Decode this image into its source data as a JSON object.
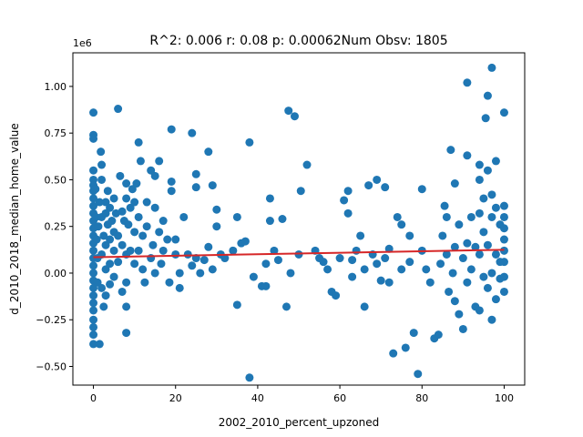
{
  "chart_data": {
    "type": "scatter",
    "title": "R^2: 0.006 r: 0.08 p: 0.00062Num Obsv: 1805",
    "xlabel": "2002_2010_percent_upzoned",
    "ylabel": "d_2010_2018_median_home_value",
    "y_offset_label": "1e6",
    "xlim": [
      -5,
      105
    ],
    "ylim": [
      -0.6,
      1.18
    ],
    "xticks": [
      0,
      20,
      40,
      60,
      80,
      100
    ],
    "yticks": [
      -0.5,
      -0.25,
      0.0,
      0.25,
      0.5,
      0.75,
      1.0
    ],
    "xtick_labels": [
      "0",
      "20",
      "40",
      "60",
      "80",
      "100"
    ],
    "ytick_labels": [
      "−0.50",
      "−0.25",
      "0.00",
      "0.25",
      "0.50",
      "0.75",
      "1.00"
    ],
    "grid": false,
    "point_color": "#1f77b4",
    "fit_line_color": "#d62728",
    "fit_line": {
      "x": [
        0,
        100
      ],
      "y": [
        0.085,
        0.125
      ]
    },
    "series": [
      {
        "points": [
          [
            0,
            0.86
          ],
          [
            0,
            0.74
          ],
          [
            0,
            0.72
          ],
          [
            0,
            0.55
          ],
          [
            0,
            0.5
          ],
          [
            0,
            0.47
          ],
          [
            0,
            0.44
          ],
          [
            0,
            0.4
          ],
          [
            0,
            0.36
          ],
          [
            0,
            0.32
          ],
          [
            0,
            0.28
          ],
          [
            0,
            0.24
          ],
          [
            0,
            0.2
          ],
          [
            0,
            0.16
          ],
          [
            0,
            0.12
          ],
          [
            0,
            0.08
          ],
          [
            0,
            0.04
          ],
          [
            0,
            0.0
          ],
          [
            0,
            -0.04
          ],
          [
            0,
            -0.08
          ],
          [
            0,
            -0.12
          ],
          [
            0,
            -0.16
          ],
          [
            0,
            -0.2
          ],
          [
            0,
            -0.25
          ],
          [
            0,
            -0.29
          ],
          [
            0,
            -0.33
          ],
          [
            0,
            -0.38
          ],
          [
            0.5,
            0.45
          ],
          [
            0.6,
            0.3
          ],
          [
            0.8,
            0.18
          ],
          [
            1,
            0.08
          ],
          [
            1,
            -0.05
          ],
          [
            1.2,
            0.25
          ],
          [
            1.5,
            -0.38
          ],
          [
            1.5,
            0.38
          ],
          [
            1.8,
            0.65
          ],
          [
            2,
            0.58
          ],
          [
            2,
            0.5
          ],
          [
            2,
            0.3
          ],
          [
            2,
            0.1
          ],
          [
            2,
            -0.08
          ],
          [
            2.5,
            0.2
          ],
          [
            2.5,
            -0.18
          ],
          [
            3,
            0.38
          ],
          [
            3,
            0.32
          ],
          [
            3,
            0.15
          ],
          [
            3,
            0.02
          ],
          [
            3,
            -0.12
          ],
          [
            3.5,
            0.26
          ],
          [
            3.5,
            0.44
          ],
          [
            4,
            0.35
          ],
          [
            4,
            0.18
          ],
          [
            4,
            0.05
          ],
          [
            4,
            -0.06
          ],
          [
            4.5,
            0.28
          ],
          [
            5,
            0.4
          ],
          [
            5,
            0.22
          ],
          [
            5,
            0.12
          ],
          [
            5,
            -0.02
          ],
          [
            5.5,
            0.32
          ],
          [
            6,
            0.88
          ],
          [
            6,
            0.2
          ],
          [
            6,
            0.06
          ],
          [
            6.5,
            0.52
          ],
          [
            7,
            0.33
          ],
          [
            7,
            0.15
          ],
          [
            7,
            -0.1
          ],
          [
            7.5,
            0.28
          ],
          [
            8,
            0.4
          ],
          [
            8,
            0.48
          ],
          [
            8,
            0.1
          ],
          [
            8,
            -0.05
          ],
          [
            8,
            -0.18
          ],
          [
            8,
            -0.32
          ],
          [
            8.5,
            0.26
          ],
          [
            9,
            0.35
          ],
          [
            9,
            0.12
          ],
          [
            9.5,
            0.45
          ],
          [
            10,
            0.38
          ],
          [
            10,
            0.22
          ],
          [
            10,
            0.05
          ],
          [
            10.5,
            0.48
          ],
          [
            11,
            0.3
          ],
          [
            11,
            0.7
          ],
          [
            11,
            0.12
          ],
          [
            11.5,
            0.6
          ],
          [
            12,
            0.2
          ],
          [
            12,
            0.02
          ],
          [
            12.5,
            -0.05
          ],
          [
            13,
            0.38
          ],
          [
            13,
            0.25
          ],
          [
            14,
            0.55
          ],
          [
            14,
            0.08
          ],
          [
            14.5,
            0.15
          ],
          [
            15,
            0.52
          ],
          [
            15,
            0.35
          ],
          [
            15,
            0.0
          ],
          [
            16,
            0.6
          ],
          [
            16,
            0.22
          ],
          [
            16.5,
            0.05
          ],
          [
            17,
            0.28
          ],
          [
            17,
            0.12
          ],
          [
            18,
            0.18
          ],
          [
            18.5,
            -0.05
          ],
          [
            19,
            0.77
          ],
          [
            19,
            0.49
          ],
          [
            19,
            0.44
          ],
          [
            20,
            0.18
          ],
          [
            20,
            0.1
          ],
          [
            21,
            0.0
          ],
          [
            21,
            -0.08
          ],
          [
            22,
            0.3
          ],
          [
            23,
            0.1
          ],
          [
            24,
            0.75
          ],
          [
            24,
            0.04
          ],
          [
            25,
            0.53
          ],
          [
            25,
            0.46
          ],
          [
            25,
            0.08
          ],
          [
            26,
            0.0
          ],
          [
            27,
            0.07
          ],
          [
            28,
            0.65
          ],
          [
            28,
            0.14
          ],
          [
            29,
            0.47
          ],
          [
            29,
            0.02
          ],
          [
            30,
            0.34
          ],
          [
            30,
            0.25
          ],
          [
            31,
            0.1
          ],
          [
            32,
            0.08
          ],
          [
            34,
            0.12
          ],
          [
            35,
            0.3
          ],
          [
            35,
            -0.17
          ],
          [
            36,
            0.16
          ],
          [
            37,
            0.17
          ],
          [
            38,
            0.7
          ],
          [
            38,
            -0.56
          ],
          [
            39,
            -0.02
          ],
          [
            41,
            -0.07
          ],
          [
            42,
            0.05
          ],
          [
            42,
            -0.07
          ],
          [
            43,
            0.4
          ],
          [
            43,
            0.28
          ],
          [
            44,
            0.12
          ],
          [
            45,
            0.07
          ],
          [
            46,
            0.29
          ],
          [
            47,
            -0.18
          ],
          [
            47.5,
            0.87
          ],
          [
            48,
            0.0
          ],
          [
            49,
            0.84
          ],
          [
            50,
            0.1
          ],
          [
            50.5,
            0.44
          ],
          [
            52,
            0.58
          ],
          [
            54,
            0.12
          ],
          [
            55,
            0.08
          ],
          [
            56,
            0.06
          ],
          [
            57,
            0.02
          ],
          [
            58,
            -0.1
          ],
          [
            59,
            -0.12
          ],
          [
            60,
            0.08
          ],
          [
            61,
            0.39
          ],
          [
            62,
            0.44
          ],
          [
            62,
            0.32
          ],
          [
            63,
            0.07
          ],
          [
            63,
            -0.02
          ],
          [
            64,
            0.12
          ],
          [
            65,
            0.2
          ],
          [
            66,
            0.02
          ],
          [
            66,
            -0.18
          ],
          [
            67,
            0.47
          ],
          [
            68,
            0.1
          ],
          [
            69,
            0.5
          ],
          [
            69,
            0.05
          ],
          [
            70,
            -0.04
          ],
          [
            71,
            0.46
          ],
          [
            71,
            0.08
          ],
          [
            72,
            0.13
          ],
          [
            72,
            -0.05
          ],
          [
            73,
            -0.43
          ],
          [
            74,
            0.3
          ],
          [
            75,
            0.26
          ],
          [
            75,
            0.02
          ],
          [
            76,
            -0.4
          ],
          [
            77,
            0.2
          ],
          [
            77,
            0.06
          ],
          [
            78,
            -0.32
          ],
          [
            79,
            -0.54
          ],
          [
            80,
            0.45
          ],
          [
            80,
            0.12
          ],
          [
            81,
            0.02
          ],
          [
            82,
            -0.05
          ],
          [
            83,
            -0.35
          ],
          [
            84,
            -0.33
          ],
          [
            84.5,
            0.05
          ],
          [
            85,
            0.2
          ],
          [
            85.5,
            0.36
          ],
          [
            86,
            0.3
          ],
          [
            86,
            0.1
          ],
          [
            86.5,
            -0.1
          ],
          [
            87,
            0.66
          ],
          [
            87.5,
            0.0
          ],
          [
            88,
            0.48
          ],
          [
            88,
            0.14
          ],
          [
            88,
            -0.15
          ],
          [
            89,
            0.26
          ],
          [
            89,
            -0.22
          ],
          [
            90,
            0.08
          ],
          [
            90,
            -0.3
          ],
          [
            91,
            0.63
          ],
          [
            91,
            1.02
          ],
          [
            91,
            0.16
          ],
          [
            91,
            -0.05
          ],
          [
            92,
            0.3
          ],
          [
            92,
            0.02
          ],
          [
            93,
            0.14
          ],
          [
            93,
            -0.18
          ],
          [
            94,
            0.58
          ],
          [
            94,
            0.5
          ],
          [
            94,
            0.32
          ],
          [
            94,
            0.1
          ],
          [
            94,
            -0.2
          ],
          [
            95,
            0.4
          ],
          [
            95,
            0.22
          ],
          [
            95,
            -0.02
          ],
          [
            95.5,
            0.83
          ],
          [
            96,
            0.95
          ],
          [
            96,
            0.55
          ],
          [
            96,
            0.15
          ],
          [
            96,
            -0.08
          ],
          [
            97,
            1.1
          ],
          [
            97,
            0.42
          ],
          [
            97,
            0.3
          ],
          [
            97,
            0.0
          ],
          [
            97,
            -0.25
          ],
          [
            98,
            0.6
          ],
          [
            98,
            0.35
          ],
          [
            98,
            0.1
          ],
          [
            98,
            -0.14
          ],
          [
            99,
            0.26
          ],
          [
            99,
            0.06
          ],
          [
            99,
            -0.03
          ],
          [
            100,
            0.86
          ],
          [
            100,
            0.36
          ],
          [
            100,
            0.18
          ],
          [
            100,
            0.06
          ],
          [
            100,
            -0.02
          ],
          [
            100,
            -0.1
          ],
          [
            100,
            0.12
          ],
          [
            100,
            0.24
          ],
          [
            100,
            0.3
          ]
        ]
      }
    ]
  }
}
